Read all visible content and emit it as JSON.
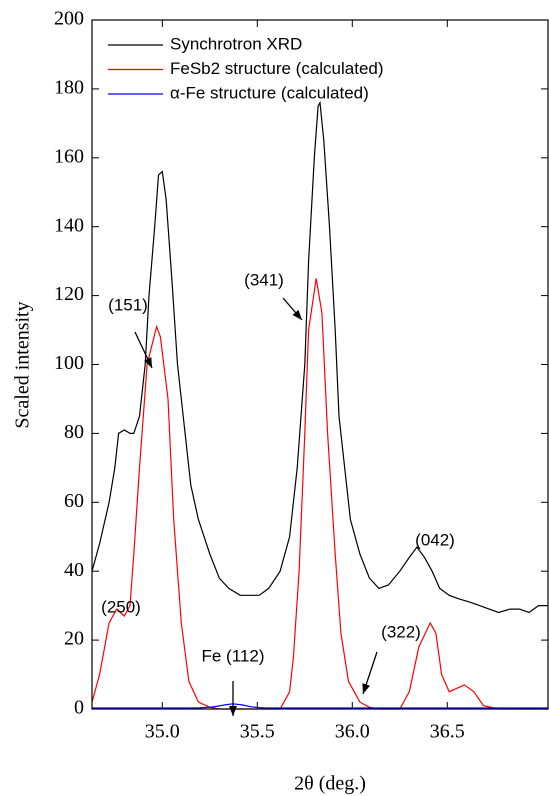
{
  "chart_data": {
    "type": "line",
    "xlabel": "2θ (deg.)",
    "ylabel": "Scaled intensity",
    "xlim": [
      34.63,
      37.03
    ],
    "ylim": [
      0,
      200
    ],
    "xticks": [
      {
        "value": 35,
        "label": "35.0"
      },
      {
        "value": 35.5,
        "label": "35.5"
      },
      {
        "value": 36,
        "label": "36.0"
      },
      {
        "value": 36.5,
        "label": "36.5"
      }
    ],
    "yticks": [
      0,
      20,
      40,
      60,
      80,
      100,
      120,
      140,
      160,
      180,
      200
    ],
    "legend": "upper left",
    "series": [
      {
        "name": "Synchrotron XRD",
        "color": "#000000",
        "x": [
          34.63,
          34.67,
          34.72,
          34.75,
          34.77,
          34.8,
          34.83,
          34.85,
          34.88,
          34.91,
          34.93,
          34.96,
          34.98,
          35.0,
          35.02,
          35.05,
          35.08,
          35.12,
          35.15,
          35.19,
          35.25,
          35.3,
          35.35,
          35.41,
          35.46,
          35.51,
          35.56,
          35.62,
          35.67,
          35.71,
          35.75,
          35.77,
          35.8,
          35.82,
          35.83,
          35.85,
          35.88,
          35.91,
          35.93,
          35.96,
          35.99,
          36.04,
          36.09,
          36.14,
          36.19,
          36.25,
          36.3,
          36.34,
          36.38,
          36.42,
          36.46,
          36.51,
          36.56,
          36.62,
          36.67,
          36.72,
          36.77,
          36.83,
          36.88,
          36.93,
          36.98,
          37.03
        ],
        "values": [
          40,
          48,
          60,
          70,
          80,
          81,
          80,
          80,
          85,
          100,
          120,
          140,
          155,
          156,
          148,
          125,
          100,
          80,
          65,
          55,
          45,
          38,
          35,
          33,
          33,
          33,
          35,
          40,
          50,
          70,
          100,
          130,
          160,
          175,
          176,
          165,
          140,
          110,
          85,
          70,
          55,
          45,
          38,
          35,
          36,
          40,
          44,
          47,
          44,
          40,
          35,
          33,
          32,
          31,
          30,
          29,
          28,
          29,
          29,
          28,
          30,
          30
        ]
      },
      {
        "name": "FeSb2 structure (calculated)",
        "color": "#ff0000",
        "x": [
          34.63,
          34.67,
          34.72,
          34.76,
          34.8,
          34.83,
          34.85,
          34.88,
          34.92,
          34.97,
          34.99,
          35.03,
          35.06,
          35.1,
          35.14,
          35.19,
          35.25,
          35.3,
          35.62,
          35.67,
          35.69,
          35.72,
          35.75,
          35.77,
          35.81,
          35.84,
          35.87,
          35.91,
          35.94,
          35.98,
          36.04,
          36.09,
          36.14,
          36.25,
          36.3,
          36.35,
          36.41,
          36.44,
          36.47,
          36.51,
          36.55,
          36.59,
          36.64,
          36.69,
          36.77,
          37.03
        ],
        "values": [
          2,
          10,
          25,
          29,
          27,
          30,
          45,
          70,
          100,
          111,
          108,
          90,
          55,
          25,
          8,
          2,
          0.5,
          0,
          0,
          5,
          15,
          40,
          80,
          110,
          125,
          115,
          80,
          45,
          22,
          8,
          2,
          0.5,
          0,
          0,
          5,
          18,
          25,
          22,
          10,
          5,
          6,
          7,
          5,
          1,
          0,
          0
        ]
      },
      {
        "name": "α-Fe structure (calculated)",
        "color": "#0000ff",
        "x": [
          34.63,
          35.19,
          35.27,
          35.33,
          35.37,
          35.42,
          35.47,
          35.54,
          37.03
        ],
        "values": [
          0.3,
          0.3,
          0.6,
          1.2,
          1.5,
          1.2,
          0.6,
          0.3,
          0.3
        ]
      }
    ],
    "annotations": [
      "(250)",
      "(151)",
      "(341)",
      "(042)",
      "(322)",
      "Fe (112)"
    ]
  }
}
